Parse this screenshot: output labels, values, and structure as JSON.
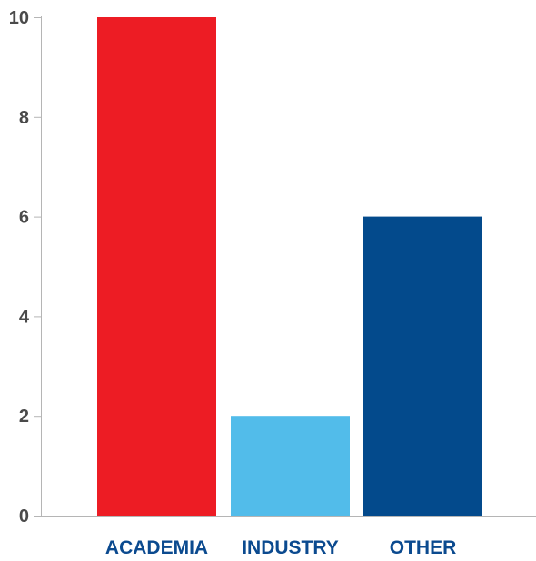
{
  "colors": {
    "background": "#ffffff",
    "axis": "#b5b5b5",
    "tick_label": "#4a4a4a",
    "category_label": "#0b4a8f"
  },
  "chart_data": {
    "type": "bar",
    "categories": [
      "ACADEMIA",
      "INDUSTRY",
      "OTHER"
    ],
    "values": [
      10,
      2,
      6
    ],
    "bar_colors": [
      "#ed1c24",
      "#52bcea",
      "#034a8c"
    ],
    "title": "",
    "xlabel": "",
    "ylabel": "",
    "ylim": [
      0,
      10
    ],
    "yticks": [
      0,
      2,
      4,
      6,
      8,
      10
    ],
    "grid": false,
    "legend": "none"
  }
}
